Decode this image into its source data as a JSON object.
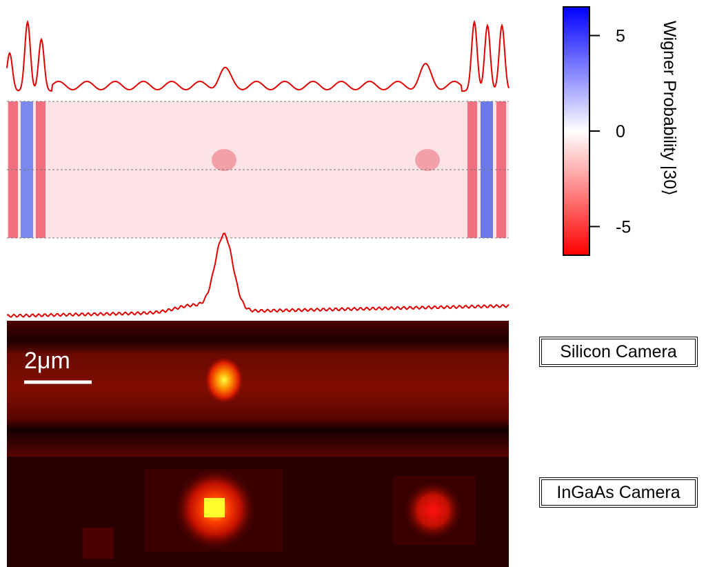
{
  "colorbar": {
    "label": "Wigner Probability |30⟩",
    "lim": [
      -6.5,
      6.5
    ],
    "ticks": [
      5,
      0,
      -5
    ]
  },
  "scale_bar": {
    "label": "2μm"
  },
  "panels": [
    {
      "label": "Silicon Camera"
    },
    {
      "label": "InGaAs Camera"
    }
  ]
}
